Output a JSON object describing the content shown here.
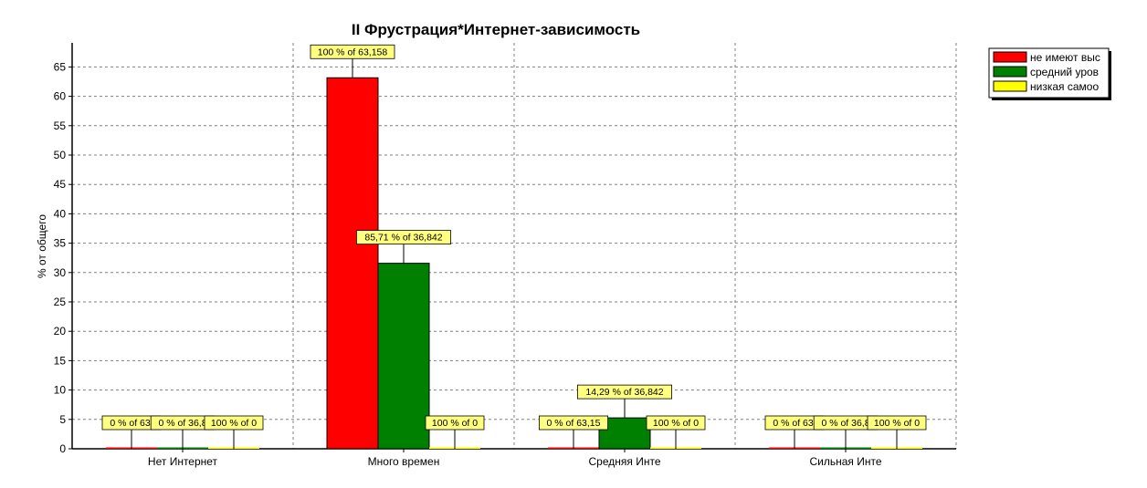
{
  "chart_data": {
    "type": "bar",
    "title": "II Фрустрация*Интернет-зависимость",
    "xlabel": "",
    "ylabel": "% от общего",
    "ylim": [
      0,
      70
    ],
    "yticks": [
      0,
      5,
      10,
      15,
      20,
      25,
      30,
      35,
      40,
      45,
      50,
      55,
      60,
      65
    ],
    "grid": true,
    "legend_position": "top-right",
    "categories": [
      "Нет Интернет",
      "Много времен",
      "Средняя Инте",
      "Сильная Инте"
    ],
    "series": [
      {
        "name": "не имеют выс",
        "color": "#ff0000",
        "values": [
          0,
          63.158,
          0,
          0
        ],
        "labels": [
          "0 % of 63,",
          "100 % of 63,158",
          "0 % of 63,15",
          "0 % of 63,"
        ]
      },
      {
        "name": "средний уров",
        "color": "#008000",
        "values": [
          0,
          31.579,
          5.263,
          0
        ],
        "labels": [
          "0 % of 36,8",
          "85,71 % of 36,842",
          "14,29 % of 36,842",
          "0 % of 36,8"
        ]
      },
      {
        "name": "низкая самоо",
        "color": "#ffff00",
        "values": [
          0,
          0,
          0,
          0
        ],
        "labels": [
          "100 % of 0",
          "100 % of 0",
          "100 % of 0",
          "100 % of 0"
        ]
      }
    ]
  }
}
